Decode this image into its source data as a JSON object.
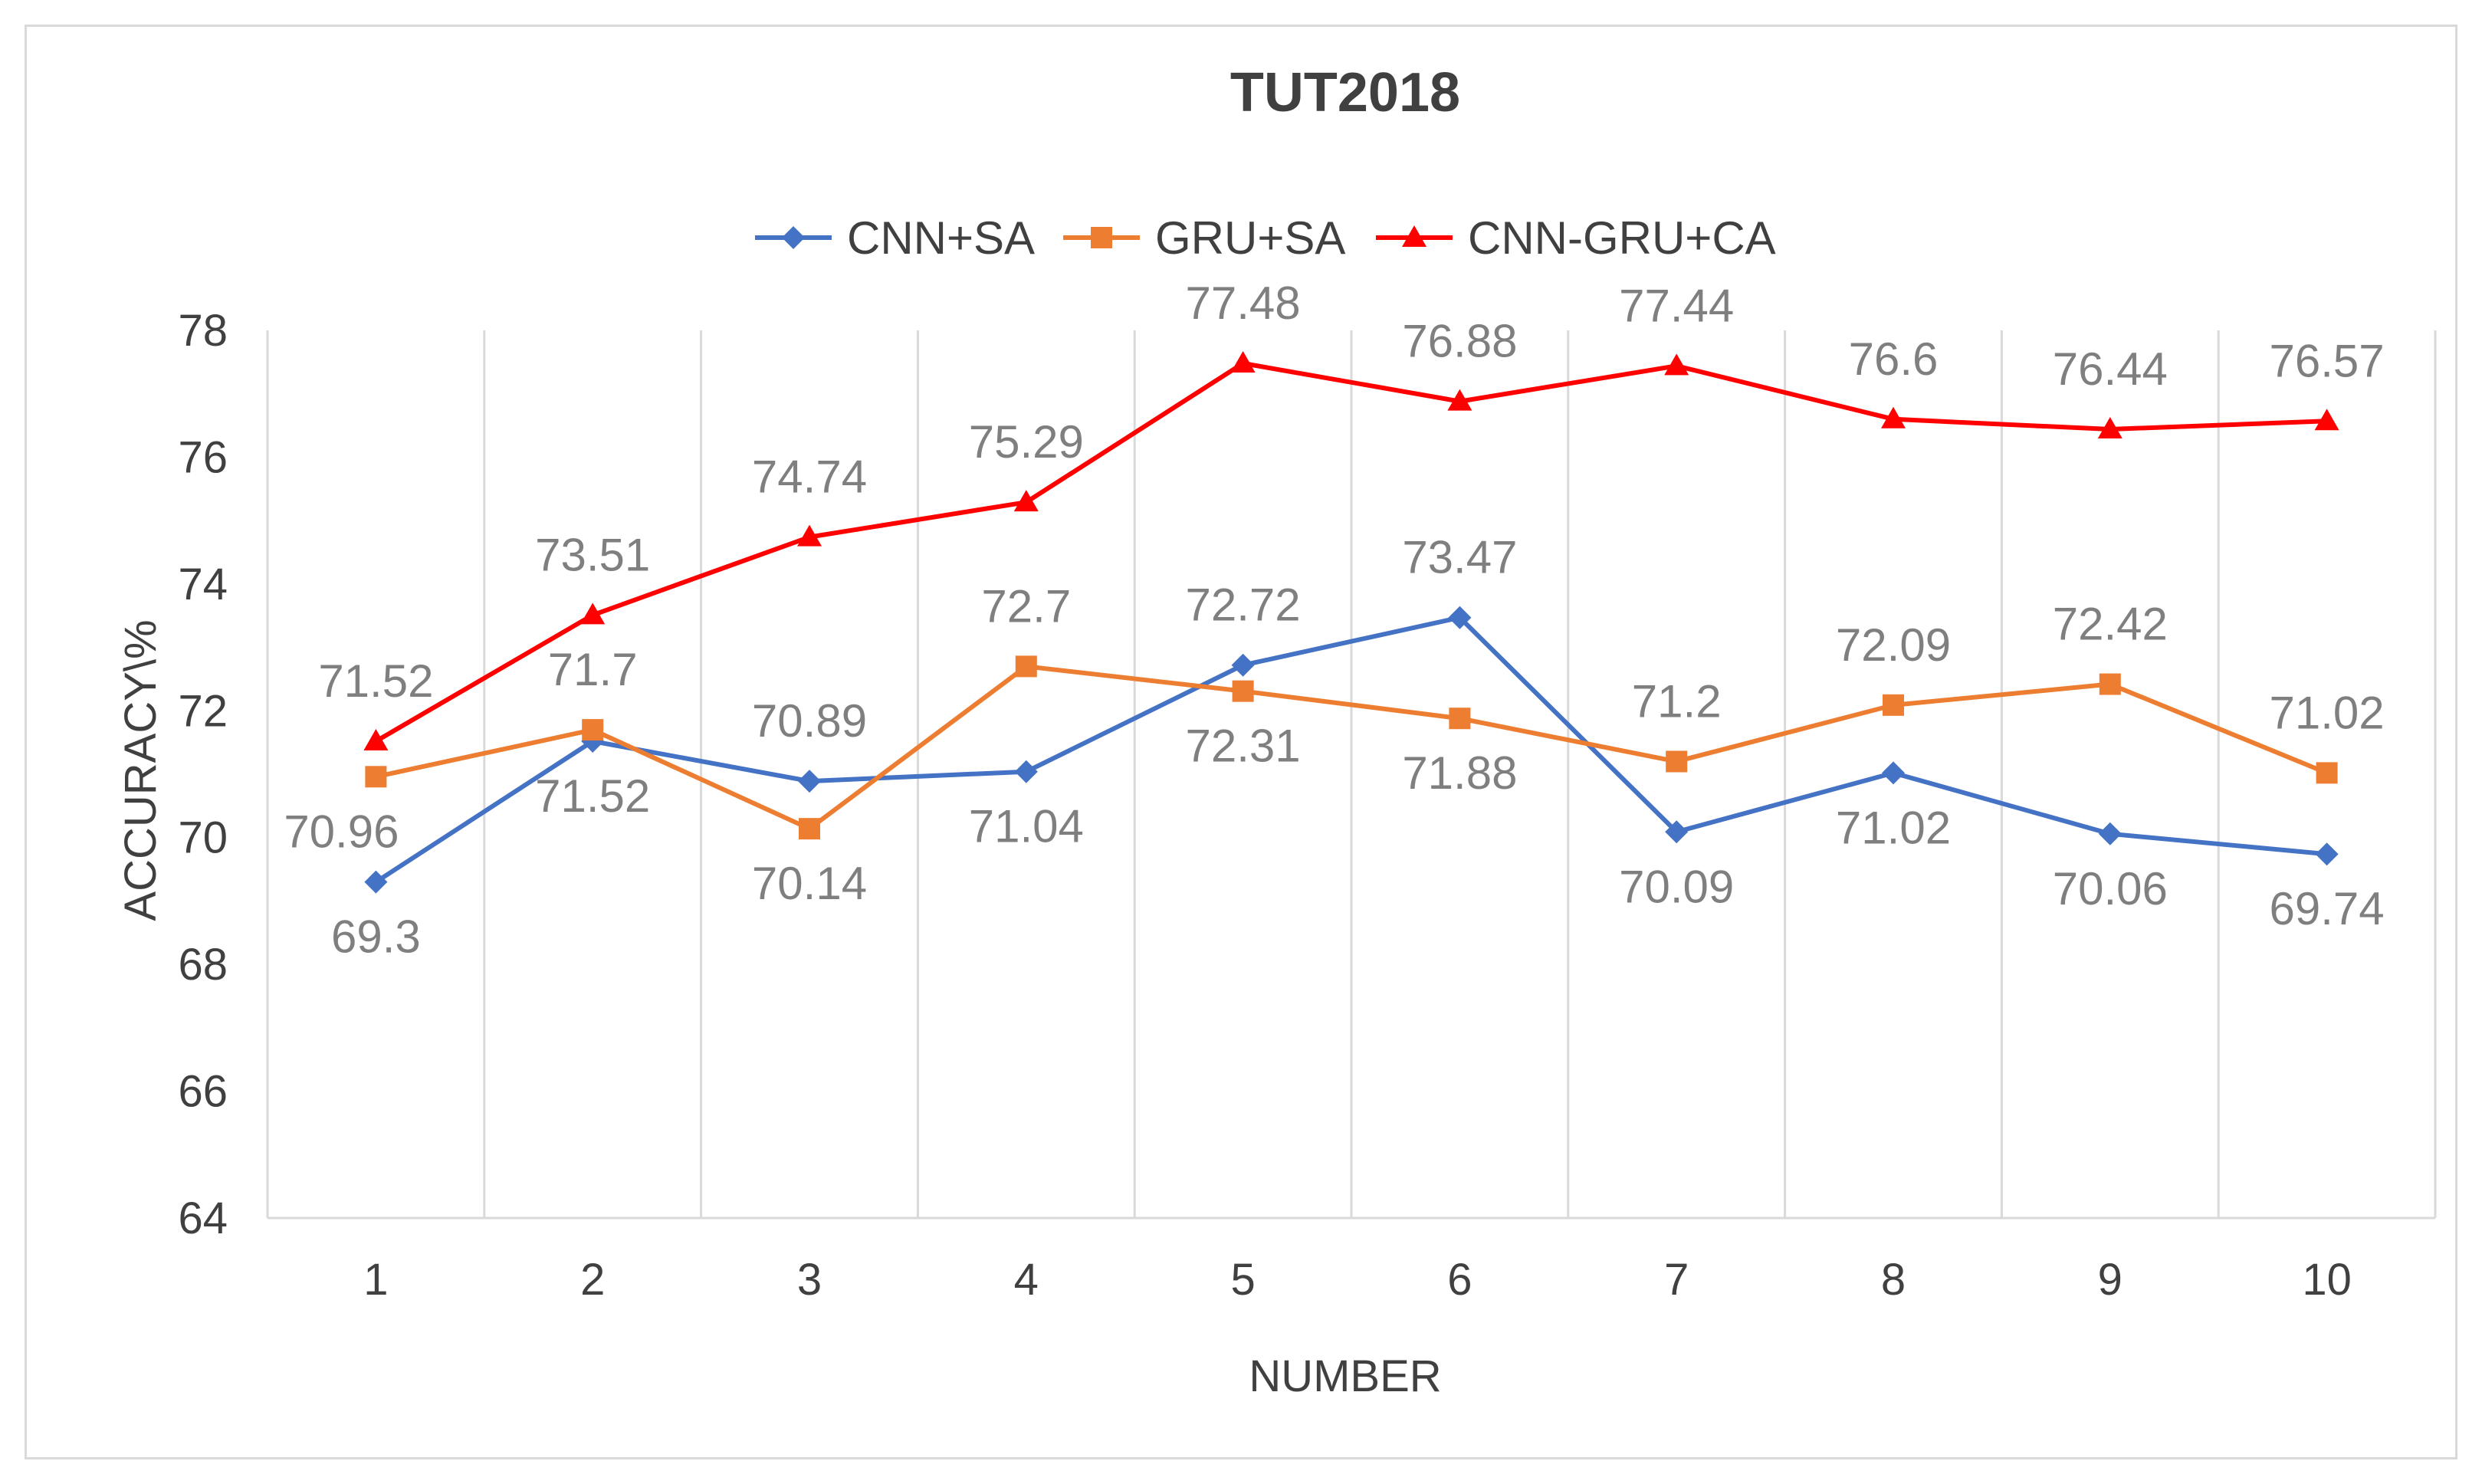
{
  "chart_data": {
    "type": "line",
    "title": "TUT2018",
    "xlabel": "NUMBER",
    "ylabel": "ACCURACY\\%",
    "categories": [
      "1",
      "2",
      "3",
      "4",
      "5",
      "6",
      "7",
      "8",
      "9",
      "10"
    ],
    "ylim": [
      64,
      78
    ],
    "yticks": [
      64,
      66,
      68,
      70,
      72,
      74,
      76,
      78
    ],
    "grid": "vertical",
    "legend_position": "top",
    "data_labels": true,
    "series": [
      {
        "name": "CNN+SA",
        "color": "#4472c4",
        "marker": "diamond",
        "values": [
          69.3,
          71.52,
          70.89,
          71.04,
          72.72,
          73.47,
          70.09,
          71.02,
          70.06,
          69.74
        ]
      },
      {
        "name": "GRU+SA",
        "color": "#ed7d31",
        "marker": "square",
        "values": [
          70.96,
          71.7,
          70.14,
          72.7,
          72.31,
          71.88,
          71.2,
          72.09,
          72.42,
          71.02
        ]
      },
      {
        "name": "CNN-GRU+CA",
        "color": "#ff0000",
        "marker": "triangle",
        "values": [
          71.52,
          73.51,
          74.74,
          75.29,
          77.48,
          76.88,
          77.44,
          76.6,
          76.44,
          76.57
        ]
      }
    ],
    "label_placement": {
      "CNN+SA": [
        "below",
        "below",
        "above",
        "below",
        "above",
        "above",
        "below",
        "below",
        "below",
        "below"
      ],
      "GRU+SA": [
        "below-left",
        "above",
        "below",
        "above",
        "below",
        "below",
        "above",
        "above",
        "above",
        "above"
      ],
      "CNN-GRU+CA": [
        "above",
        "above",
        "above",
        "above",
        "above",
        "above",
        "above",
        "above",
        "above",
        "above"
      ]
    },
    "gridline_color": "#d9d9d9",
    "axis_color": "#d9d9d9",
    "text_color": "#404040",
    "label_color": "#7f7f7f"
  }
}
